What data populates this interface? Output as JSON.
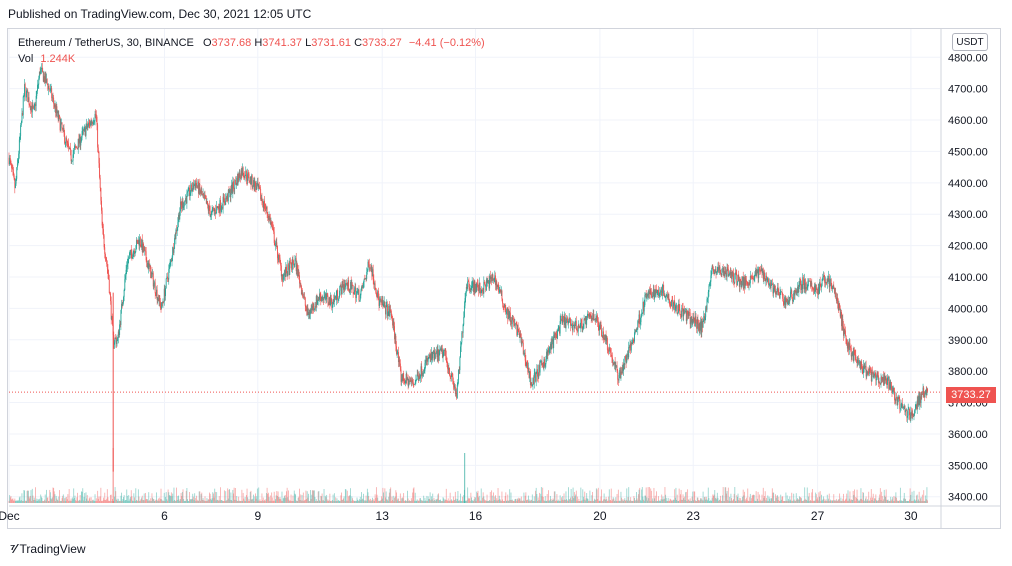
{
  "publisher_line": "Published on TradingView.com, Dec 30, 2021 12:05 UTC",
  "legend": {
    "symbol": "Ethereum / TetherUS, 30, BINANCE",
    "o_label": "O",
    "o": "3737.68",
    "h_label": "H",
    "h": "3741.37",
    "l_label": "L",
    "l": "3731.61",
    "c_label": "C",
    "c": "3733.27",
    "change": "−4.41 (−0.12%)",
    "vol_label": "Vol",
    "vol": "1.244K"
  },
  "currency_badge": "USDT",
  "last_price_label": "3733.27",
  "footer_brand": "TradingView",
  "colors": {
    "up": "#26a69a",
    "down": "#ef5350",
    "grid": "#f0f3fa",
    "last_line": "#ef5350"
  },
  "chart_data": {
    "type": "candlestick",
    "symbol": "ETHUSDT",
    "interval": "30",
    "ylim": [
      3380,
      4890
    ],
    "y_ticks": [
      "3400.00",
      "3500.00",
      "3600.00",
      "3700.00",
      "3800.00",
      "3900.00",
      "4000.00",
      "4100.00",
      "4200.00",
      "4300.00",
      "4400.00",
      "4500.00",
      "4600.00",
      "4700.00",
      "4800.00"
    ],
    "x_ticks": [
      "Dec",
      "6",
      "9",
      "13",
      "16",
      "20",
      "23",
      "27",
      "30"
    ],
    "x_tick_days": [
      1,
      6,
      9,
      13,
      16,
      20,
      23,
      27,
      30
    ],
    "last_price": 3733.27,
    "price_path": [
      {
        "day": 1.0,
        "price": 4480
      },
      {
        "day": 1.2,
        "price": 4380
      },
      {
        "day": 1.5,
        "price": 4700
      },
      {
        "day": 1.8,
        "price": 4620
      },
      {
        "day": 2.0,
        "price": 4760
      },
      {
        "day": 2.3,
        "price": 4700
      },
      {
        "day": 2.6,
        "price": 4600
      },
      {
        "day": 3.0,
        "price": 4480
      },
      {
        "day": 3.4,
        "price": 4560
      },
      {
        "day": 3.8,
        "price": 4620
      },
      {
        "day": 4.0,
        "price": 4250
      },
      {
        "day": 4.2,
        "price": 4100
      },
      {
        "day": 4.35,
        "price": 3900
      },
      {
        "day": 4.5,
        "price": 3900
      },
      {
        "day": 4.8,
        "price": 4150
      },
      {
        "day": 5.2,
        "price": 4220
      },
      {
        "day": 5.6,
        "price": 4100
      },
      {
        "day": 5.9,
        "price": 4000
      },
      {
        "day": 6.2,
        "price": 4150
      },
      {
        "day": 6.5,
        "price": 4320
      },
      {
        "day": 7.0,
        "price": 4400
      },
      {
        "day": 7.5,
        "price": 4300
      },
      {
        "day": 8.0,
        "price": 4350
      },
      {
        "day": 8.5,
        "price": 4440
      },
      {
        "day": 9.0,
        "price": 4380
      },
      {
        "day": 9.4,
        "price": 4280
      },
      {
        "day": 9.8,
        "price": 4100
      },
      {
        "day": 10.2,
        "price": 4150
      },
      {
        "day": 10.6,
        "price": 3980
      },
      {
        "day": 11.0,
        "price": 4040
      },
      {
        "day": 11.4,
        "price": 4020
      },
      {
        "day": 11.8,
        "price": 4080
      },
      {
        "day": 12.3,
        "price": 4040
      },
      {
        "day": 12.6,
        "price": 4150
      },
      {
        "day": 12.9,
        "price": 4020
      },
      {
        "day": 13.3,
        "price": 3980
      },
      {
        "day": 13.6,
        "price": 3780
      },
      {
        "day": 14.0,
        "price": 3760
      },
      {
        "day": 14.5,
        "price": 3840
      },
      {
        "day": 15.0,
        "price": 3860
      },
      {
        "day": 15.4,
        "price": 3720
      },
      {
        "day": 15.7,
        "price": 4080
      },
      {
        "day": 16.2,
        "price": 4060
      },
      {
        "day": 16.6,
        "price": 4100
      },
      {
        "day": 17.0,
        "price": 3990
      },
      {
        "day": 17.4,
        "price": 3920
      },
      {
        "day": 17.8,
        "price": 3760
      },
      {
        "day": 18.2,
        "price": 3830
      },
      {
        "day": 18.8,
        "price": 3960
      },
      {
        "day": 19.3,
        "price": 3940
      },
      {
        "day": 19.8,
        "price": 3980
      },
      {
        "day": 20.2,
        "price": 3900
      },
      {
        "day": 20.6,
        "price": 3780
      },
      {
        "day": 21.0,
        "price": 3880
      },
      {
        "day": 21.5,
        "price": 4040
      },
      {
        "day": 22.0,
        "price": 4060
      },
      {
        "day": 22.5,
        "price": 4000
      },
      {
        "day": 23.0,
        "price": 3960
      },
      {
        "day": 23.3,
        "price": 3940
      },
      {
        "day": 23.6,
        "price": 4120
      },
      {
        "day": 24.0,
        "price": 4120
      },
      {
        "day": 24.6,
        "price": 4080
      },
      {
        "day": 25.2,
        "price": 4120
      },
      {
        "day": 25.6,
        "price": 4060
      },
      {
        "day": 26.0,
        "price": 4020
      },
      {
        "day": 26.5,
        "price": 4080
      },
      {
        "day": 27.0,
        "price": 4060
      },
      {
        "day": 27.3,
        "price": 4100
      },
      {
        "day": 27.6,
        "price": 4040
      },
      {
        "day": 27.9,
        "price": 3900
      },
      {
        "day": 28.3,
        "price": 3820
      },
      {
        "day": 28.8,
        "price": 3780
      },
      {
        "day": 29.3,
        "price": 3760
      },
      {
        "day": 29.7,
        "price": 3680
      },
      {
        "day": 30.0,
        "price": 3660
      },
      {
        "day": 30.4,
        "price": 3733
      }
    ]
  }
}
